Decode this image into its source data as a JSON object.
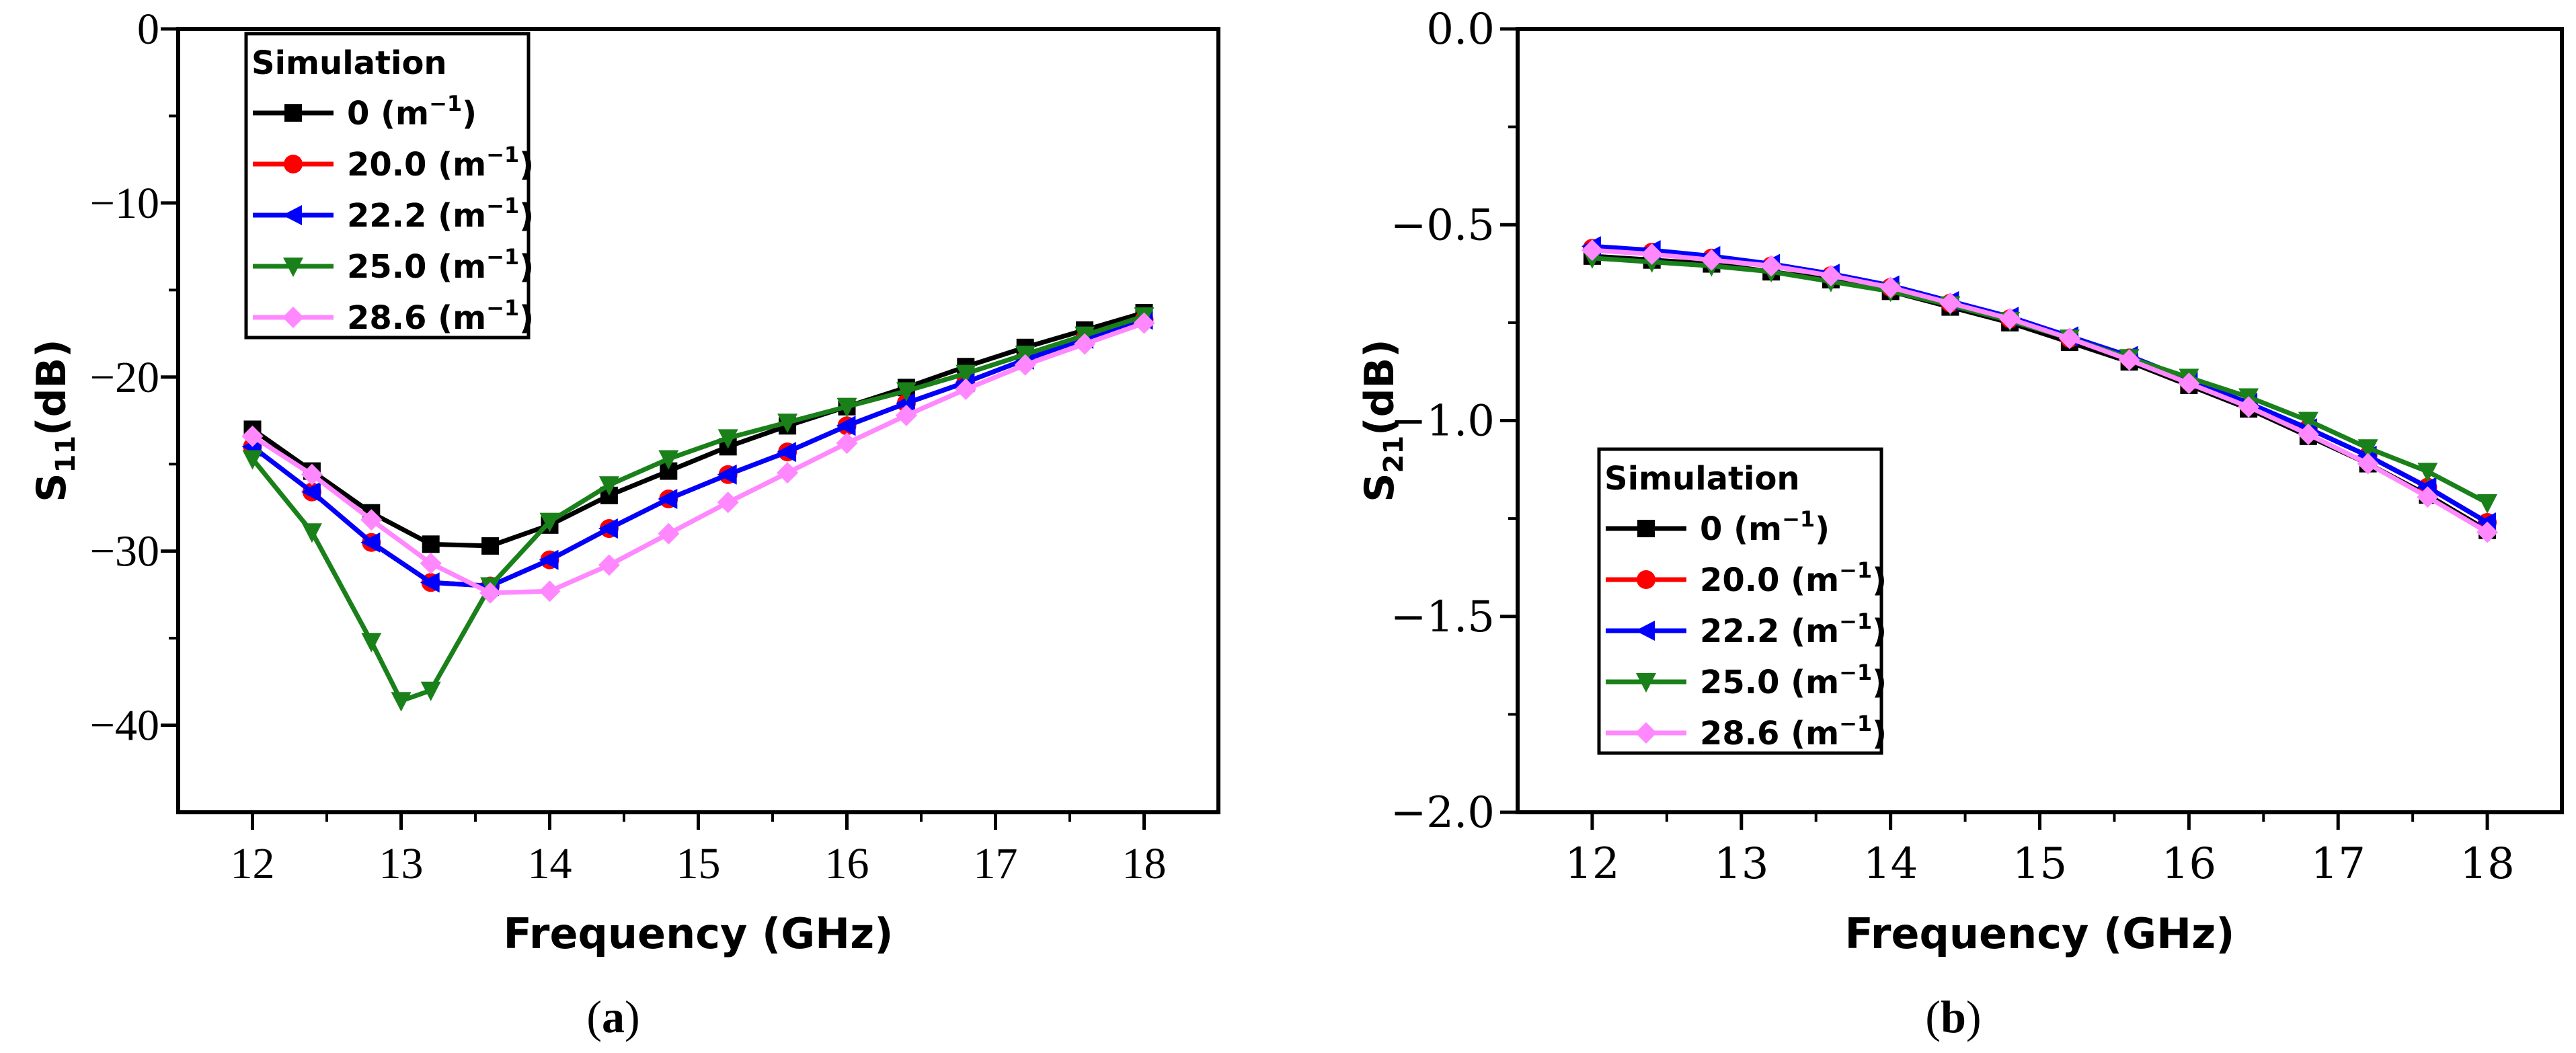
{
  "chart_data": [
    {
      "type": "line",
      "panel": "a",
      "caption": "(a)",
      "xlabel": "Frequency (GHz)",
      "ylabel": "S11(dB)",
      "xlim": [
        11.5,
        18.5
      ],
      "ylim": [
        -45,
        0
      ],
      "xticks": [
        12,
        13,
        14,
        15,
        16,
        17,
        18
      ],
      "yticks": [
        0,
        -10,
        -20,
        -30,
        -40
      ],
      "ytick_labels": [
        "0",
        "−10",
        "−20",
        "−30",
        "−40"
      ],
      "legend_title": "Simulation",
      "legend_position": "top-left",
      "x": [
        12,
        12.4,
        12.8,
        13.2,
        13.6,
        14,
        14.4,
        14.8,
        15.2,
        15.6,
        16,
        16.4,
        16.8,
        17.2,
        17.6,
        18
      ],
      "series": [
        {
          "name": "0 (m−1)",
          "color": "#000000",
          "marker": "square",
          "x": [
            12,
            12.4,
            12.8,
            13.2,
            13.6,
            14,
            14.4,
            14.8,
            15.2,
            15.6,
            16,
            16.4,
            16.8,
            17.2,
            17.6,
            18
          ],
          "values": [
            -23.0,
            -25.4,
            -27.8,
            -29.6,
            -29.7,
            -28.5,
            -26.8,
            -25.4,
            -24.0,
            -22.8,
            -21.7,
            -20.6,
            -19.4,
            -18.3,
            -17.3,
            -16.3
          ]
        },
        {
          "name": "20.0 (m−1)",
          "color": "#ff0000",
          "marker": "circle",
          "x": [
            12,
            12.4,
            12.8,
            13.2,
            13.6,
            14,
            14.4,
            14.8,
            15.2,
            15.6,
            16,
            16.4,
            16.8,
            17.2,
            17.6,
            18
          ],
          "values": [
            -24.0,
            -26.6,
            -29.5,
            -31.8,
            -32.0,
            -30.5,
            -28.7,
            -27.0,
            -25.6,
            -24.3,
            -22.8,
            -21.5,
            -20.3,
            -19.0,
            -17.8,
            -16.7
          ]
        },
        {
          "name": "22.2 (m−1)",
          "color": "#0000ff",
          "marker": "triangle-left",
          "x": [
            12,
            12.4,
            12.8,
            13.2,
            13.6,
            14,
            14.4,
            14.8,
            15.2,
            15.6,
            16,
            16.4,
            16.8,
            17.2,
            17.6,
            18
          ],
          "values": [
            -24.0,
            -26.6,
            -29.5,
            -31.8,
            -32.0,
            -30.5,
            -28.7,
            -27.0,
            -25.6,
            -24.3,
            -22.8,
            -21.5,
            -20.3,
            -19.0,
            -17.8,
            -16.7
          ]
        },
        {
          "name": "25.0 (m−1)",
          "color": "#1a801a",
          "marker": "triangle-down",
          "x": [
            12,
            12.4,
            12.8,
            13.0,
            13.2,
            13.6,
            14,
            14.4,
            14.8,
            15.2,
            15.6,
            16,
            16.4,
            16.8,
            17.2,
            17.6,
            18
          ],
          "values": [
            -24.7,
            -28.9,
            -35.2,
            -38.6,
            -38.0,
            -32.0,
            -28.3,
            -26.2,
            -24.7,
            -23.5,
            -22.6,
            -21.7,
            -20.8,
            -19.8,
            -18.7,
            -17.6,
            -16.5
          ]
        },
        {
          "name": "28.6 (m−1)",
          "color": "#ff88ff",
          "marker": "diamond",
          "x": [
            12,
            12.4,
            12.8,
            13.2,
            13.6,
            14,
            14.4,
            14.8,
            15.2,
            15.6,
            16,
            16.4,
            16.8,
            17.2,
            17.6,
            18
          ],
          "values": [
            -23.4,
            -25.6,
            -28.2,
            -30.7,
            -32.4,
            -32.3,
            -30.8,
            -29.0,
            -27.2,
            -25.5,
            -23.8,
            -22.2,
            -20.7,
            -19.3,
            -18.1,
            -16.9
          ]
        }
      ]
    },
    {
      "type": "line",
      "panel": "b",
      "caption": "(b)",
      "xlabel": "Frequency (GHz)",
      "ylabel": "S21(dB)",
      "xlim": [
        11.5,
        18.5
      ],
      "ylim": [
        -2.0,
        0.0
      ],
      "xticks": [
        12,
        13,
        14,
        15,
        16,
        17,
        18
      ],
      "yticks": [
        0.0,
        -0.5,
        -1.0,
        -1.5,
        -2.0
      ],
      "ytick_labels": [
        "0.0",
        "−0.5",
        "−1.0",
        "−1.5",
        "−2.0"
      ],
      "legend_title": "Simulation",
      "legend_position": "bottom-left",
      "series": [
        {
          "name": "0 (m−1)",
          "color": "#000000",
          "marker": "square",
          "x": [
            12,
            12.4,
            12.8,
            13.2,
            13.6,
            14,
            14.4,
            14.8,
            15.2,
            15.6,
            16,
            16.4,
            16.8,
            17.2,
            17.6,
            18
          ],
          "values": [
            -0.58,
            -0.59,
            -0.6,
            -0.62,
            -0.64,
            -0.67,
            -0.71,
            -0.75,
            -0.8,
            -0.85,
            -0.91,
            -0.97,
            -1.04,
            -1.11,
            -1.19,
            -1.28
          ]
        },
        {
          "name": "20.0 (m−1)",
          "color": "#ff0000",
          "marker": "circle",
          "x": [
            12,
            12.4,
            12.8,
            13.2,
            13.6,
            14,
            14.4,
            14.8,
            15.2,
            15.6,
            16,
            16.4,
            16.8,
            17.2,
            17.6,
            18
          ],
          "values": [
            -0.56,
            -0.57,
            -0.585,
            -0.605,
            -0.63,
            -0.66,
            -0.7,
            -0.74,
            -0.79,
            -0.84,
            -0.9,
            -0.96,
            -1.02,
            -1.09,
            -1.17,
            -1.26
          ]
        },
        {
          "name": "22.2 (m−1)",
          "color": "#0000ff",
          "marker": "triangle-left",
          "x": [
            12,
            12.4,
            12.8,
            13.2,
            13.6,
            14,
            14.4,
            14.8,
            15.2,
            15.6,
            16,
            16.4,
            16.8,
            17.2,
            17.6,
            18
          ],
          "values": [
            -0.555,
            -0.565,
            -0.58,
            -0.6,
            -0.625,
            -0.655,
            -0.695,
            -0.735,
            -0.785,
            -0.835,
            -0.895,
            -0.955,
            -1.02,
            -1.09,
            -1.17,
            -1.26
          ]
        },
        {
          "name": "25.0 (m−1)",
          "color": "#1a801a",
          "marker": "triangle-down",
          "x": [
            12,
            12.4,
            12.8,
            13.2,
            13.6,
            14,
            14.4,
            14.8,
            15.2,
            15.6,
            16,
            16.4,
            16.8,
            17.2,
            17.6,
            18
          ],
          "values": [
            -0.585,
            -0.595,
            -0.605,
            -0.62,
            -0.645,
            -0.67,
            -0.705,
            -0.745,
            -0.79,
            -0.84,
            -0.89,
            -0.94,
            -1.0,
            -1.07,
            -1.13,
            -1.21
          ]
        },
        {
          "name": "28.6 (m−1)",
          "color": "#ff88ff",
          "marker": "diamond",
          "x": [
            12,
            12.4,
            12.8,
            13.2,
            13.6,
            14,
            14.4,
            14.8,
            15.2,
            15.6,
            16,
            16.4,
            16.8,
            17.2,
            17.6,
            18
          ],
          "values": [
            -0.565,
            -0.575,
            -0.59,
            -0.605,
            -0.63,
            -0.66,
            -0.7,
            -0.74,
            -0.79,
            -0.845,
            -0.905,
            -0.965,
            -1.035,
            -1.11,
            -1.195,
            -1.285
          ]
        }
      ]
    }
  ]
}
